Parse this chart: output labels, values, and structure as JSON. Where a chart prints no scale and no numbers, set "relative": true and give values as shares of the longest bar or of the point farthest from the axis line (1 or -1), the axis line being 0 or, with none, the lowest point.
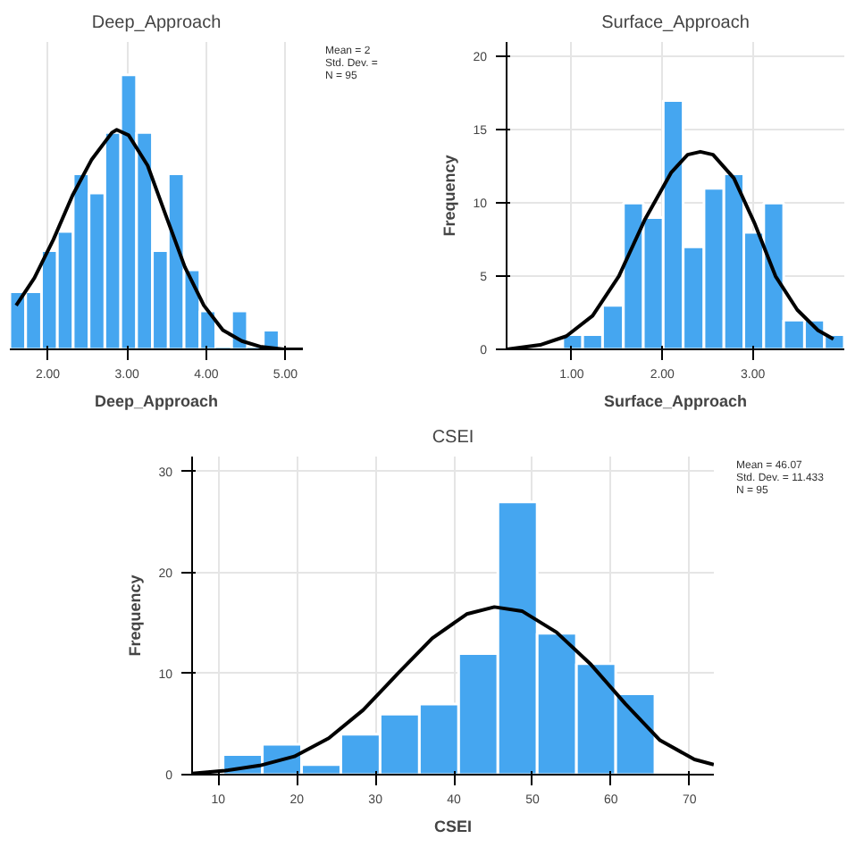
{
  "chart_data": [
    {
      "type": "histogram",
      "title": "Deep_Approach",
      "xlabel": "Deep_Approach",
      "relative": true,
      "grid": true,
      "xlim": [
        1.52,
        5.22
      ],
      "xticks": [
        {
          "value": 2,
          "label": "2.00"
        },
        {
          "value": 3,
          "label": "3.00"
        },
        {
          "value": 4,
          "label": "4.00"
        },
        {
          "value": 5,
          "label": "5.00"
        }
      ],
      "annotations": [
        "Mean = 2",
        "Std. Dev. =",
        "N = 95"
      ],
      "series": [
        {
          "color": "#45a6f0",
          "bins": [
            1.52,
            1.72,
            1.92,
            2.12,
            2.32,
            2.52,
            2.72,
            2.92,
            3.12,
            3.32,
            3.52,
            3.72,
            3.92,
            4.12,
            4.32,
            4.52,
            4.72,
            4.92
          ],
          "values": [
            0.21,
            0.21,
            0.36,
            0.43,
            0.64,
            0.57,
            0.79,
            1,
            0.79,
            0.36,
            0.64,
            0.29,
            0.14,
            0,
            0.14,
            0,
            0.07
          ]
        },
        {
          "type": "line",
          "color": "#000000",
          "x": [
            1.6,
            1.83,
            2.07,
            2.31,
            2.55,
            2.81,
            2.87,
            3.02,
            3.26,
            3.5,
            3.73,
            3.97,
            4.21,
            4.45,
            4.68,
            4.98,
            5.22
          ],
          "values": [
            0.16,
            0.26,
            0.4,
            0.56,
            0.69,
            0.79,
            0.8,
            0.78,
            0.67,
            0.48,
            0.3,
            0.16,
            0.07,
            0.03,
            0.01,
            0,
            0
          ]
        }
      ]
    },
    {
      "type": "histogram",
      "title": "Surface_Approach",
      "xlabel": "Surface_Approach",
      "ylabel": "Frequency",
      "grid": true,
      "xlim": [
        0.28,
        4.01
      ],
      "xticks": [
        {
          "value": 1,
          "label": "1.00"
        },
        {
          "value": 2,
          "label": "2.00"
        },
        {
          "value": 3,
          "label": "3.00"
        }
      ],
      "ylim": [
        0,
        21
      ],
      "yticks": [
        0,
        5,
        10,
        15,
        20
      ],
      "series": [
        {
          "color": "#45a6f0",
          "bins": [
            0.9,
            1.12,
            1.34,
            1.57,
            1.79,
            2.01,
            2.23,
            2.46,
            2.68,
            2.9,
            3.12,
            3.34,
            3.57,
            3.79,
            4.01
          ],
          "values": [
            1,
            1,
            3,
            10,
            9,
            17,
            7,
            11,
            12,
            8,
            10,
            2,
            2,
            1
          ]
        },
        {
          "type": "line",
          "color": "#000000",
          "x": [
            0.28,
            0.65,
            0.94,
            1.23,
            1.52,
            1.81,
            2.1,
            2.28,
            2.42,
            2.56,
            2.79,
            3.02,
            3.25,
            3.49,
            3.72,
            3.89
          ],
          "values": [
            0,
            0.3,
            0.9,
            2.3,
            5,
            8.9,
            12.1,
            13.3,
            13.5,
            13.3,
            11.7,
            8.6,
            5,
            2.7,
            1.3,
            0.7
          ]
        }
      ]
    },
    {
      "type": "histogram",
      "title": "CSEI",
      "xlabel": "CSEI",
      "ylabel": "Frequency",
      "grid": true,
      "xlim": [
        6.66,
        73.1
      ],
      "xticks": [
        10,
        20,
        30,
        40,
        50,
        60,
        70
      ],
      "ylim": [
        0,
        31.5
      ],
      "yticks": [
        0,
        10,
        20,
        30
      ],
      "annotations": [
        "Mean = 46.07",
        "Std. Dev. = 11.433",
        "N = 95"
      ],
      "series": [
        {
          "color": "#45a6f0",
          "bins": [
            10.6,
            15.6,
            20.6,
            25.6,
            30.6,
            35.6,
            40.6,
            45.6,
            50.6,
            55.6,
            60.6,
            65.6
          ],
          "values": [
            2,
            3,
            1,
            4,
            6,
            7,
            12,
            27,
            14,
            11,
            8
          ]
        },
        {
          "type": "line",
          "color": "#000000",
          "x": [
            6.66,
            10.88,
            15.27,
            19.67,
            24.06,
            28.45,
            32.85,
            37.24,
            41.63,
            45.15,
            48.66,
            53.06,
            57.45,
            61.84,
            66.24,
            70.63,
            73.09
          ],
          "values": [
            0.1,
            0.4,
            0.9,
            1.8,
            3.6,
            6.4,
            10,
            13.5,
            15.9,
            16.6,
            16.2,
            14.1,
            10.9,
            7,
            3.4,
            1.5,
            1
          ]
        }
      ]
    }
  ]
}
